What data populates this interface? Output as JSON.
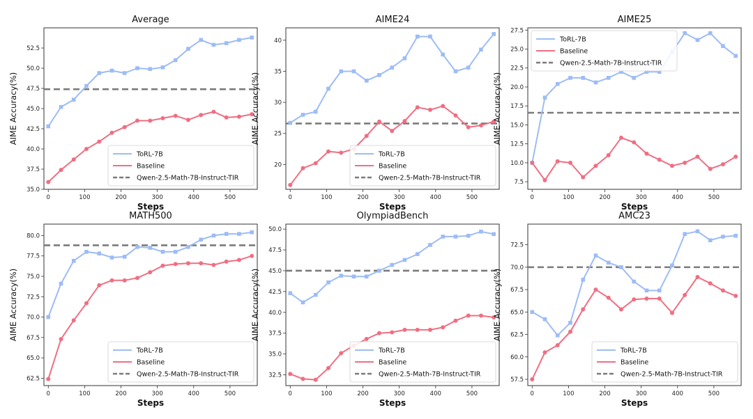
{
  "colors": {
    "torl": "#9dbcf6",
    "baseline": "#f06e82",
    "qwen": "#7b7b7b"
  },
  "chart_data": [
    {
      "type": "line",
      "title": "Average",
      "xlabel": "Steps",
      "ylabel": "AIME Accuracy(%)",
      "xlim": [
        -12,
        575
      ],
      "ylim": [
        35.0,
        55.0
      ],
      "xticks": [
        0,
        100,
        200,
        300,
        400,
        500
      ],
      "yticks": [
        35.0,
        37.5,
        40.0,
        42.5,
        45.0,
        47.5,
        50.0,
        52.5
      ],
      "ytick_labels": [
        "35.0",
        "37.5",
        "40.0",
        "42.5",
        "45.0",
        "47.5",
        "50.0",
        "52.5"
      ],
      "legend": "bottom-right",
      "x": [
        0,
        35,
        70,
        105,
        140,
        175,
        210,
        245,
        280,
        315,
        350,
        385,
        420,
        455,
        490,
        525,
        560
      ],
      "series": [
        {
          "name": "ToRL-7B",
          "color_key": "torl",
          "marker": "square",
          "values": [
            42.8,
            45.2,
            46.1,
            47.8,
            49.4,
            49.7,
            49.4,
            50.0,
            49.9,
            50.1,
            51.0,
            52.4,
            53.5,
            52.9,
            53.1,
            53.5,
            53.8
          ]
        },
        {
          "name": "Baseline",
          "color_key": "baseline",
          "marker": "circle",
          "values": [
            35.9,
            37.4,
            38.7,
            40.0,
            40.9,
            42.0,
            42.7,
            43.5,
            43.5,
            43.8,
            44.1,
            43.6,
            44.2,
            44.6,
            43.9,
            44.0,
            44.3
          ]
        }
      ],
      "hline": {
        "name": "Qwen-2.5-Math-7B-Instruct-TIR",
        "color_key": "qwen",
        "value": 47.4
      }
    },
    {
      "type": "line",
      "title": "AIME24",
      "xlabel": "Steps",
      "ylabel": "AIME Accuracy(%)",
      "xlim": [
        -12,
        575
      ],
      "ylim": [
        16.0,
        42.0
      ],
      "xticks": [
        0,
        100,
        200,
        300,
        400,
        500
      ],
      "yticks": [
        20,
        25,
        30,
        35,
        40
      ],
      "ytick_labels": [
        "20",
        "25",
        "30",
        "35",
        "40"
      ],
      "legend": "bottom-right",
      "x": [
        0,
        35,
        70,
        105,
        140,
        175,
        210,
        245,
        280,
        315,
        350,
        385,
        420,
        455,
        490,
        525,
        560
      ],
      "series": [
        {
          "name": "ToRL-7B",
          "color_key": "torl",
          "marker": "square",
          "values": [
            26.7,
            28.0,
            28.5,
            32.2,
            35.0,
            35.0,
            33.5,
            34.4,
            35.6,
            37.1,
            40.6,
            40.6,
            37.7,
            35.0,
            35.6,
            38.5,
            41.0
          ]
        },
        {
          "name": "Baseline",
          "color_key": "baseline",
          "marker": "circle",
          "values": [
            16.7,
            19.4,
            20.2,
            22.1,
            21.9,
            22.5,
            24.6,
            26.9,
            25.4,
            27.0,
            29.2,
            28.8,
            29.4,
            27.9,
            26.0,
            26.3,
            26.9
          ]
        }
      ],
      "hline": {
        "name": "Qwen-2.5-Math-7B-Instruct-TIR",
        "color_key": "qwen",
        "value": 26.6
      }
    },
    {
      "type": "line",
      "title": "AIME25",
      "xlabel": "Steps",
      "ylabel": "AIME Accuracy(%)",
      "xlim": [
        -12,
        575
      ],
      "ylim": [
        6.5,
        27.8
      ],
      "xticks": [
        0,
        100,
        200,
        300,
        400,
        500
      ],
      "yticks": [
        7.5,
        10.0,
        12.5,
        15.0,
        17.5,
        20.0,
        22.5,
        25.0,
        27.5
      ],
      "ytick_labels": [
        "7.5",
        "10.0",
        "12.5",
        "15.0",
        "17.5",
        "20.0",
        "22.5",
        "25.0",
        "27.5"
      ],
      "legend": "top-left",
      "x": [
        0,
        35,
        70,
        105,
        140,
        175,
        210,
        245,
        280,
        315,
        350,
        385,
        420,
        455,
        490,
        525,
        560
      ],
      "series": [
        {
          "name": "ToRL-7B",
          "color_key": "torl",
          "marker": "square",
          "values": [
            10.0,
            18.6,
            20.4,
            21.2,
            21.2,
            20.6,
            21.2,
            22.0,
            21.2,
            22.0,
            22.0,
            24.6,
            27.1,
            26.2,
            27.1,
            25.4,
            24.1
          ]
        },
        {
          "name": "Baseline",
          "color_key": "baseline",
          "marker": "circle",
          "values": [
            10.0,
            7.7,
            10.2,
            10.0,
            8.1,
            9.6,
            11.0,
            13.3,
            12.7,
            11.2,
            10.4,
            9.6,
            10.0,
            10.8,
            9.2,
            9.8,
            10.8
          ]
        }
      ],
      "hline": {
        "name": "Qwen-2.5-Math-7B-Instruct-TIR",
        "color_key": "qwen",
        "value": 16.6
      }
    },
    {
      "type": "line",
      "title": "MATH500",
      "xlabel": "Steps",
      "ylabel": "AIME Accuracy(%)",
      "xlim": [
        -12,
        575
      ],
      "ylim": [
        61.6,
        81.4
      ],
      "xticks": [
        0,
        100,
        200,
        300,
        400,
        500
      ],
      "yticks": [
        62.5,
        65.0,
        67.5,
        70.0,
        72.5,
        75.0,
        77.5,
        80.0
      ],
      "ytick_labels": [
        "62.5",
        "65.0",
        "67.5",
        "70.0",
        "72.5",
        "75.0",
        "77.5",
        "80.0"
      ],
      "legend": "bottom-right",
      "x": [
        0,
        35,
        70,
        105,
        140,
        175,
        210,
        245,
        280,
        315,
        350,
        385,
        420,
        455,
        490,
        525,
        560
      ],
      "series": [
        {
          "name": "ToRL-7B",
          "color_key": "torl",
          "marker": "square",
          "values": [
            70.0,
            74.1,
            76.9,
            78.0,
            77.8,
            77.3,
            77.4,
            78.6,
            78.5,
            78.0,
            78.0,
            78.6,
            79.5,
            80.0,
            80.2,
            80.2,
            80.4
          ]
        },
        {
          "name": "Baseline",
          "color_key": "baseline",
          "marker": "circle",
          "values": [
            62.4,
            67.3,
            69.6,
            71.7,
            73.9,
            74.5,
            74.5,
            74.8,
            75.5,
            76.3,
            76.5,
            76.6,
            76.6,
            76.4,
            76.8,
            77.0,
            77.5
          ]
        }
      ],
      "hline": {
        "name": "Qwen-2.5-Math-7B-Instruct-TIR",
        "color_key": "qwen",
        "value": 78.8
      }
    },
    {
      "type": "line",
      "title": "OlympiadBench",
      "xlabel": "Steps",
      "ylabel": "AIME Accuracy(%)",
      "xlim": [
        -12,
        575
      ],
      "ylim": [
        31.2,
        50.6
      ],
      "xticks": [
        0,
        100,
        200,
        300,
        400,
        500
      ],
      "yticks": [
        32.5,
        35.0,
        37.5,
        40.0,
        42.5,
        45.0,
        47.5,
        50.0
      ],
      "ytick_labels": [
        "32.5",
        "35.0",
        "37.5",
        "40.0",
        "42.5",
        "45.0",
        "47.5",
        "50.0"
      ],
      "legend": "bottom-right",
      "x": [
        0,
        35,
        70,
        105,
        140,
        175,
        210,
        245,
        280,
        315,
        350,
        385,
        420,
        455,
        490,
        525,
        560
      ],
      "series": [
        {
          "name": "ToRL-7B",
          "color_key": "torl",
          "marker": "square",
          "values": [
            42.3,
            41.2,
            42.1,
            43.6,
            44.4,
            44.3,
            44.3,
            45.0,
            45.7,
            46.3,
            47.0,
            48.1,
            49.1,
            49.1,
            49.2,
            49.7,
            49.4
          ]
        },
        {
          "name": "Baseline",
          "color_key": "baseline",
          "marker": "circle",
          "values": [
            32.6,
            32.0,
            31.9,
            33.3,
            35.1,
            36.0,
            36.8,
            37.5,
            37.6,
            37.9,
            37.9,
            37.9,
            38.2,
            39.0,
            39.6,
            39.6,
            39.4
          ]
        }
      ],
      "hline": {
        "name": "Qwen-2.5-Math-7B-Instruct-TIR",
        "color_key": "qwen",
        "value": 45.0
      }
    },
    {
      "type": "line",
      "title": "AMC23",
      "xlabel": "Steps",
      "ylabel": "AIME Accuracy(%)",
      "xlim": [
        -12,
        575
      ],
      "ylim": [
        56.8,
        74.8
      ],
      "xticks": [
        0,
        100,
        200,
        300,
        400,
        500
      ],
      "yticks": [
        57.5,
        60.0,
        62.5,
        65.0,
        67.5,
        70.0,
        72.5
      ],
      "ytick_labels": [
        "57.5",
        "60.0",
        "62.5",
        "65.0",
        "67.5",
        "70.0",
        "72.5"
      ],
      "legend": "bottom-right",
      "x": [
        0,
        35,
        70,
        105,
        140,
        175,
        210,
        245,
        280,
        315,
        350,
        385,
        420,
        455,
        490,
        525,
        560
      ],
      "series": [
        {
          "name": "ToRL-7B",
          "color_key": "torl",
          "marker": "square",
          "values": [
            65.0,
            64.2,
            62.4,
            63.8,
            68.6,
            71.3,
            70.5,
            70.0,
            68.4,
            67.4,
            67.4,
            70.2,
            73.7,
            74.0,
            73.0,
            73.4,
            73.5
          ]
        },
        {
          "name": "Baseline",
          "color_key": "baseline",
          "marker": "circle",
          "values": [
            57.5,
            60.5,
            61.3,
            62.8,
            65.3,
            67.5,
            66.6,
            65.3,
            66.4,
            66.5,
            66.5,
            64.9,
            66.9,
            68.9,
            68.2,
            67.4,
            66.8
          ]
        }
      ],
      "hline": {
        "name": "Qwen-2.5-Math-7B-Instruct-TIR",
        "color_key": "qwen",
        "value": 70.0
      }
    }
  ]
}
